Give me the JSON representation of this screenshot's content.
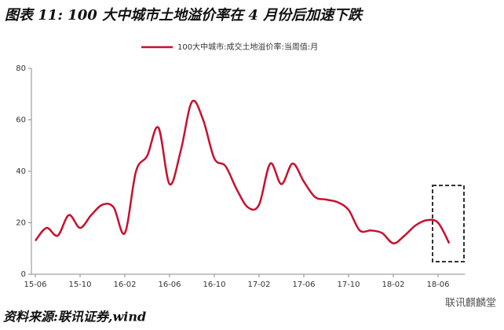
{
  "chart_data": {
    "type": "line",
    "title": "图表 11:  100 大中城市土地溢价率在 4 月份后加速下跌",
    "source": "资料来源:联讯证券,wind",
    "watermark": "联讯麒麟堂",
    "categories": [
      "15-06",
      null,
      null,
      null,
      "15-10",
      null,
      null,
      null,
      "16-02",
      null,
      null,
      null,
      "16-06",
      null,
      null,
      null,
      "16-10",
      null,
      null,
      null,
      "17-02",
      null,
      null,
      null,
      "17-06",
      null,
      null,
      null,
      "17-10",
      null,
      null,
      null,
      "18-02",
      null,
      null,
      null,
      "18-06",
      null
    ],
    "series": [
      {
        "name": "100大中城市:成交土地溢价率:当周值:月",
        "color": "#c8102e",
        "values": [
          13,
          18,
          15,
          23,
          18,
          23,
          27,
          26,
          16,
          40,
          46,
          57,
          35,
          48,
          67,
          60,
          45,
          42,
          33,
          26,
          27,
          43,
          35,
          43,
          36,
          30,
          29,
          28,
          25,
          17,
          17,
          16,
          12,
          15,
          19,
          21,
          20,
          12
        ]
      }
    ],
    "ylim": [
      0,
      80
    ],
    "yticks": [
      0,
      20,
      40,
      60,
      80
    ],
    "legend": "top"
  }
}
